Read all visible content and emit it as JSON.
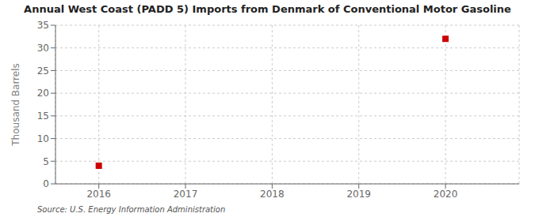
{
  "chart_data": {
    "type": "scatter",
    "title": "Annual West Coast (PADD 5) Imports from Denmark of Conventional Motor Gasoline",
    "ylabel": "Thousand Barrels",
    "annotations": [
      "Source: U.S. Energy Information Administration"
    ],
    "x": [
      2016,
      2020
    ],
    "values": [
      4,
      32
    ],
    "color": "#cc0000",
    "marker": "square",
    "xlim": [
      2015.5,
      2020.85
    ],
    "ylim": [
      0,
      35
    ],
    "xticks": [
      2016,
      2017,
      2018,
      2019,
      2020
    ],
    "yticks": [
      0,
      5,
      10,
      15,
      20,
      25,
      30,
      35
    ],
    "grid": true
  }
}
